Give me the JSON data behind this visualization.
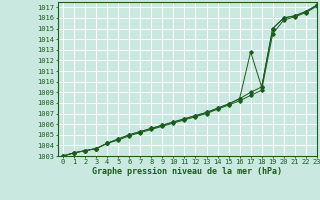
{
  "xlabel": "Graphe pression niveau de la mer (hPa)",
  "xlim": [
    -0.5,
    23
  ],
  "ylim": [
    1003,
    1017.5
  ],
  "yticks": [
    1003,
    1004,
    1005,
    1006,
    1007,
    1008,
    1009,
    1010,
    1011,
    1012,
    1013,
    1014,
    1015,
    1016,
    1017
  ],
  "xticks": [
    0,
    1,
    2,
    3,
    4,
    5,
    6,
    7,
    8,
    9,
    10,
    11,
    12,
    13,
    14,
    15,
    16,
    17,
    18,
    19,
    20,
    21,
    22,
    23
  ],
  "bg_color": "#c8e8e0",
  "grid_color": "#ffffff",
  "line_color": "#1a5c1a",
  "line_straight1": [
    1003.0,
    1003.3,
    1003.5,
    1003.7,
    1004.2,
    1004.5,
    1004.9,
    1005.2,
    1005.5,
    1005.8,
    1006.1,
    1006.4,
    1006.7,
    1007.0,
    1007.4,
    1007.8,
    1008.2,
    1008.7,
    1009.2,
    1014.5,
    1015.8,
    1016.1,
    1016.5,
    1017.1
  ],
  "line_straight2": [
    1003.0,
    1003.3,
    1003.5,
    1003.7,
    1004.2,
    1004.6,
    1005.0,
    1005.3,
    1005.6,
    1005.9,
    1006.2,
    1006.5,
    1006.8,
    1007.1,
    1007.5,
    1007.9,
    1008.4,
    1009.0,
    1009.5,
    1015.0,
    1016.0,
    1016.2,
    1016.6,
    1017.2
  ],
  "line_deviant": [
    1003.0,
    1003.3,
    1003.5,
    1003.7,
    1004.2,
    1004.6,
    1005.0,
    1005.3,
    1005.6,
    1005.9,
    1006.2,
    1006.5,
    1006.8,
    1007.1,
    1007.5,
    1007.9,
    1008.4,
    1012.8,
    1009.5,
    1015.0,
    1016.0,
    1016.2,
    1016.6,
    1017.2
  ],
  "tick_fontsize": 5,
  "xlabel_fontsize": 6,
  "marker": "D",
  "markersize": 1.8,
  "linewidth": 0.7
}
